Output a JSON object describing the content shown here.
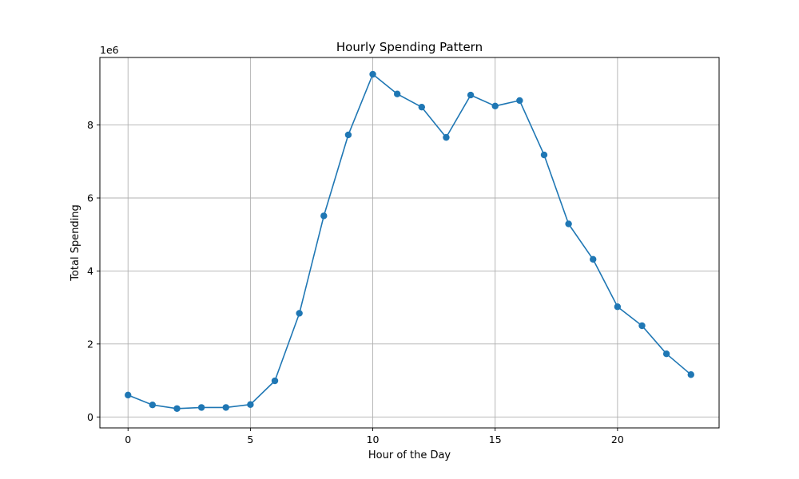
{
  "chart_data": {
    "type": "line",
    "title": "Hourly Spending Pattern",
    "xlabel": "Hour of the Day",
    "ylabel": "Total Spending",
    "y_offset_label": "1e6",
    "xlim": [
      -1.15,
      24.15
    ],
    "ylim": [
      -0.3,
      9.85
    ],
    "y_unit_multiplier": 1000000,
    "xticks": [
      0,
      5,
      10,
      15,
      20
    ],
    "yticks": [
      0,
      2,
      4,
      6,
      8
    ],
    "grid": true,
    "color": "#1f77b4",
    "x": [
      0,
      1,
      2,
      3,
      4,
      5,
      6,
      7,
      8,
      9,
      10,
      11,
      12,
      13,
      14,
      15,
      16,
      17,
      18,
      19,
      20,
      21,
      22,
      23
    ],
    "y": [
      0.6,
      0.33,
      0.23,
      0.26,
      0.26,
      0.34,
      0.99,
      2.84,
      5.51,
      7.73,
      9.39,
      8.85,
      8.49,
      7.66,
      8.82,
      8.52,
      8.67,
      7.18,
      5.29,
      4.32,
      3.02,
      2.5,
      1.73,
      1.16
    ]
  }
}
